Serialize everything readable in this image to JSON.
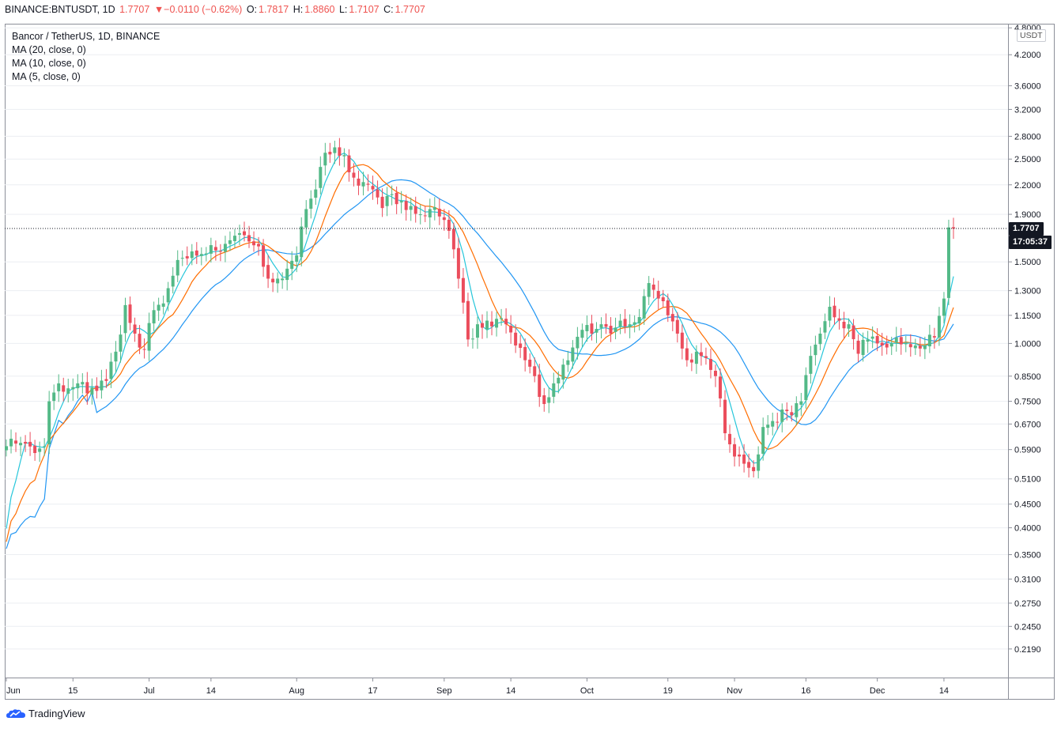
{
  "header": {
    "symbol": "BINANCE:BNTUSDT, 1D",
    "last": "1.7707",
    "change": "▼−0.0110 (−0.62%)",
    "o_label": "O:",
    "o": "1.7817",
    "h_label": "H:",
    "h": "1.8860",
    "l_label": "L:",
    "l": "1.7107",
    "c_label": "C:",
    "c": "1.7707"
  },
  "legend": {
    "title": "Bancor / TetherUS, 1D, BINANCE",
    "ma20": "MA (20, close, 0)",
    "ma10": "MA (10, close, 0)",
    "ma5": "MA (5, close, 0)"
  },
  "price_axis": {
    "currency": "USDT",
    "current_price": "1.7707",
    "countdown": "17:05:37"
  },
  "brand": {
    "name": "TradingView"
  },
  "colors": {
    "up": "#53b987",
    "down": "#eb4d5c",
    "ma20": "#2196f3",
    "ma10": "#ff6d00",
    "ma5": "#26c6da",
    "grid": "#eceef2",
    "axis": "#131722"
  },
  "chart_data": {
    "type": "candlestick",
    "scale": "log",
    "ylim": [
      0.19,
      4.9
    ],
    "y_ticks": [
      "4.8000",
      "4.2000",
      "3.6000",
      "3.2000",
      "2.8000",
      "2.5000",
      "2.2000",
      "1.9000",
      "1.5000",
      "1.3000",
      "1.1500",
      "1.0000",
      "0.8500",
      "0.7500",
      "0.6700",
      "0.5900",
      "0.5100",
      "0.4500",
      "0.4000",
      "0.3500",
      "0.3100",
      "0.2750",
      "0.2450",
      "0.2190"
    ],
    "x_ticks": [
      "Jun",
      "15",
      "Jul",
      "14",
      "Aug",
      "17",
      "Sep",
      "14",
      "Oct",
      "19",
      "Nov",
      "16",
      "Dec",
      "14"
    ],
    "x_tick_days": [
      0,
      14,
      30,
      43,
      61,
      77,
      92,
      106,
      122,
      139,
      153,
      168,
      183,
      197
    ],
    "series_names": [
      "MA (20, close, 0)",
      "MA (10, close, 0)",
      "MA (5, close, 0)"
    ],
    "anchors": [
      [
        0,
        0.6
      ],
      [
        3,
        0.61
      ],
      [
        6,
        0.58
      ],
      [
        8,
        0.6
      ],
      [
        9,
        0.75
      ],
      [
        11,
        0.82
      ],
      [
        13,
        0.8
      ],
      [
        15,
        0.82
      ],
      [
        17,
        0.78
      ],
      [
        19,
        0.79
      ],
      [
        21,
        0.83
      ],
      [
        23,
        0.96
      ],
      [
        25,
        1.21
      ],
      [
        27,
        1.05
      ],
      [
        29,
        0.97
      ],
      [
        31,
        1.18
      ],
      [
        33,
        1.22
      ],
      [
        35,
        1.4
      ],
      [
        37,
        1.53
      ],
      [
        39,
        1.58
      ],
      [
        41,
        1.56
      ],
      [
        43,
        1.63
      ],
      [
        45,
        1.58
      ],
      [
        47,
        1.67
      ],
      [
        49,
        1.73
      ],
      [
        51,
        1.66
      ],
      [
        53,
        1.62
      ],
      [
        55,
        1.38
      ],
      [
        57,
        1.38
      ],
      [
        59,
        1.45
      ],
      [
        61,
        1.55
      ],
      [
        63,
        1.95
      ],
      [
        65,
        2.15
      ],
      [
        67,
        2.58
      ],
      [
        69,
        2.65
      ],
      [
        71,
        2.55
      ],
      [
        73,
        2.28
      ],
      [
        75,
        2.23
      ],
      [
        77,
        2.15
      ],
      [
        79,
        1.96
      ],
      [
        81,
        2.1
      ],
      [
        83,
        2.03
      ],
      [
        85,
        1.98
      ],
      [
        87,
        1.9
      ],
      [
        89,
        1.95
      ],
      [
        91,
        1.88
      ],
      [
        93,
        1.75
      ],
      [
        95,
        1.38
      ],
      [
        97,
        1.02
      ],
      [
        99,
        1.1
      ],
      [
        101,
        1.12
      ],
      [
        103,
        1.13
      ],
      [
        105,
        1.1
      ],
      [
        107,
        0.99
      ],
      [
        109,
        0.92
      ],
      [
        111,
        0.85
      ],
      [
        113,
        0.74
      ],
      [
        115,
        0.82
      ],
      [
        117,
        0.9
      ],
      [
        119,
        0.98
      ],
      [
        121,
        1.07
      ],
      [
        123,
        1.05
      ],
      [
        125,
        1.1
      ],
      [
        127,
        1.05
      ],
      [
        129,
        1.12
      ],
      [
        131,
        1.1
      ],
      [
        133,
        1.14
      ],
      [
        135,
        1.35
      ],
      [
        137,
        1.25
      ],
      [
        139,
        1.15
      ],
      [
        141,
        1.05
      ],
      [
        143,
        0.92
      ],
      [
        145,
        0.96
      ],
      [
        147,
        0.93
      ],
      [
        149,
        0.85
      ],
      [
        151,
        0.64
      ],
      [
        153,
        0.57
      ],
      [
        155,
        0.55
      ],
      [
        157,
        0.53
      ],
      [
        159,
        0.66
      ],
      [
        161,
        0.68
      ],
      [
        163,
        0.72
      ],
      [
        165,
        0.7
      ],
      [
        167,
        0.75
      ],
      [
        169,
        0.94
      ],
      [
        171,
        1.05
      ],
      [
        173,
        1.2
      ],
      [
        175,
        1.12
      ],
      [
        177,
        1.1
      ],
      [
        179,
        0.95
      ],
      [
        181,
        1.02
      ],
      [
        183,
        1.0
      ],
      [
        185,
        0.98
      ],
      [
        187,
        1.03
      ],
      [
        189,
        1.0
      ],
      [
        191,
        0.99
      ],
      [
        193,
        0.99
      ],
      [
        195,
        1.03
      ],
      [
        197,
        1.25
      ],
      [
        198,
        1.78
      ],
      [
        199,
        1.7707
      ]
    ]
  }
}
